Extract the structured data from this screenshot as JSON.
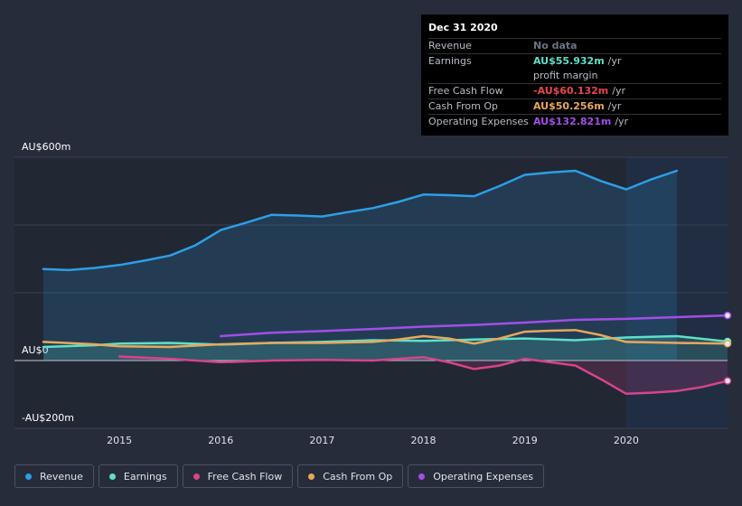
{
  "chart_data": {
    "type": "area",
    "y_axis": {
      "min": -200,
      "max": 600,
      "labels": [
        {
          "value": 600,
          "text": "AU$600m"
        },
        {
          "value": 0,
          "text": "AU$0"
        },
        {
          "value": -200,
          "text": "-AU$200m"
        }
      ]
    },
    "x_axis": {
      "min": 2014.25,
      "max": 2021.0,
      "ticks": [
        2015,
        2016,
        2017,
        2018,
        2019,
        2020
      ]
    },
    "forecast_start": 2020.0,
    "series": [
      {
        "name": "Revenue",
        "color": "#2e9ee6",
        "fill": true,
        "points": [
          [
            2014.25,
            270
          ],
          [
            2014.5,
            267
          ],
          [
            2014.75,
            273
          ],
          [
            2015.0,
            282
          ],
          [
            2015.25,
            295
          ],
          [
            2015.5,
            310
          ],
          [
            2015.75,
            340
          ],
          [
            2016.0,
            385
          ],
          [
            2016.25,
            407
          ],
          [
            2016.5,
            430
          ],
          [
            2016.75,
            428
          ],
          [
            2017.0,
            425
          ],
          [
            2017.25,
            438
          ],
          [
            2017.5,
            450
          ],
          [
            2017.75,
            468
          ],
          [
            2018.0,
            490
          ],
          [
            2018.25,
            488
          ],
          [
            2018.5,
            485
          ],
          [
            2018.75,
            515
          ],
          [
            2019.0,
            548
          ],
          [
            2019.25,
            555
          ],
          [
            2019.5,
            560
          ],
          [
            2019.75,
            530
          ],
          [
            2020.0,
            505
          ],
          [
            2020.25,
            535
          ],
          [
            2020.5,
            560
          ]
        ]
      },
      {
        "name": "Earnings",
        "color": "#5ee0c8",
        "fill": true,
        "points": [
          [
            2014.25,
            40
          ],
          [
            2014.75,
            45
          ],
          [
            2015.0,
            50
          ],
          [
            2015.5,
            52
          ],
          [
            2016.0,
            47
          ],
          [
            2016.5,
            52
          ],
          [
            2017.0,
            55
          ],
          [
            2017.5,
            60
          ],
          [
            2018.0,
            58
          ],
          [
            2018.5,
            62
          ],
          [
            2019.0,
            65
          ],
          [
            2019.5,
            60
          ],
          [
            2020.0,
            68
          ],
          [
            2020.5,
            72
          ],
          [
            2021.0,
            56
          ]
        ]
      },
      {
        "name": "Free Cash Flow",
        "color": "#d6448a",
        "fill": true,
        "points": [
          [
            2015.0,
            12
          ],
          [
            2015.5,
            5
          ],
          [
            2016.0,
            -5
          ],
          [
            2016.5,
            0
          ],
          [
            2017.0,
            2
          ],
          [
            2017.5,
            0
          ],
          [
            2018.0,
            10
          ],
          [
            2018.25,
            -5
          ],
          [
            2018.5,
            -25
          ],
          [
            2018.75,
            -15
          ],
          [
            2019.0,
            5
          ],
          [
            2019.25,
            -5
          ],
          [
            2019.5,
            -15
          ],
          [
            2019.75,
            -55
          ],
          [
            2020.0,
            -98
          ],
          [
            2020.25,
            -95
          ],
          [
            2020.5,
            -90
          ],
          [
            2020.75,
            -78
          ],
          [
            2021.0,
            -60
          ]
        ]
      },
      {
        "name": "Cash From Op",
        "color": "#e8a85c",
        "fill": false,
        "points": [
          [
            2014.25,
            55
          ],
          [
            2014.75,
            48
          ],
          [
            2015.0,
            42
          ],
          [
            2015.5,
            40
          ],
          [
            2016.0,
            48
          ],
          [
            2016.5,
            52
          ],
          [
            2017.0,
            52
          ],
          [
            2017.5,
            55
          ],
          [
            2017.75,
            62
          ],
          [
            2018.0,
            72
          ],
          [
            2018.25,
            65
          ],
          [
            2018.5,
            50
          ],
          [
            2018.75,
            65
          ],
          [
            2019.0,
            85
          ],
          [
            2019.25,
            88
          ],
          [
            2019.5,
            90
          ],
          [
            2019.75,
            75
          ],
          [
            2020.0,
            55
          ],
          [
            2020.5,
            52
          ],
          [
            2021.0,
            50
          ]
        ]
      },
      {
        "name": "Operating Expenses",
        "color": "#a24ee8",
        "fill": false,
        "points": [
          [
            2016.0,
            72
          ],
          [
            2016.5,
            82
          ],
          [
            2017.0,
            87
          ],
          [
            2017.5,
            93
          ],
          [
            2018.0,
            100
          ],
          [
            2018.5,
            105
          ],
          [
            2019.0,
            112
          ],
          [
            2019.5,
            120
          ],
          [
            2020.0,
            123
          ],
          [
            2020.5,
            128
          ],
          [
            2021.0,
            133
          ]
        ]
      }
    ],
    "tooltip": {
      "date": "Dec 31 2020",
      "rows": [
        {
          "label": "Revenue",
          "value": "No data",
          "unit": "",
          "color": "#6d7380"
        },
        {
          "label": "Earnings",
          "value": "AU$55.932m",
          "unit": "/yr",
          "color": "#5ee0c8"
        },
        {
          "label": "",
          "value": "",
          "unit": "profit margin",
          "color": "#b6bcc6",
          "sub": true
        },
        {
          "label": "Free Cash Flow",
          "value": "-AU$60.132m",
          "unit": "/yr",
          "color": "#e8474e"
        },
        {
          "label": "Cash From Op",
          "value": "AU$50.256m",
          "unit": "/yr",
          "color": "#e8a85c"
        },
        {
          "label": "Operating Expenses",
          "value": "AU$132.821m",
          "unit": "/yr",
          "color": "#a24ee8"
        }
      ]
    },
    "legend": [
      {
        "name": "Revenue",
        "color": "#2e9ee6"
      },
      {
        "name": "Earnings",
        "color": "#5ee0c8"
      },
      {
        "name": "Free Cash Flow",
        "color": "#d6448a"
      },
      {
        "name": "Cash From Op",
        "color": "#e8a85c"
      },
      {
        "name": "Operating Expenses",
        "color": "#a24ee8"
      }
    ]
  }
}
